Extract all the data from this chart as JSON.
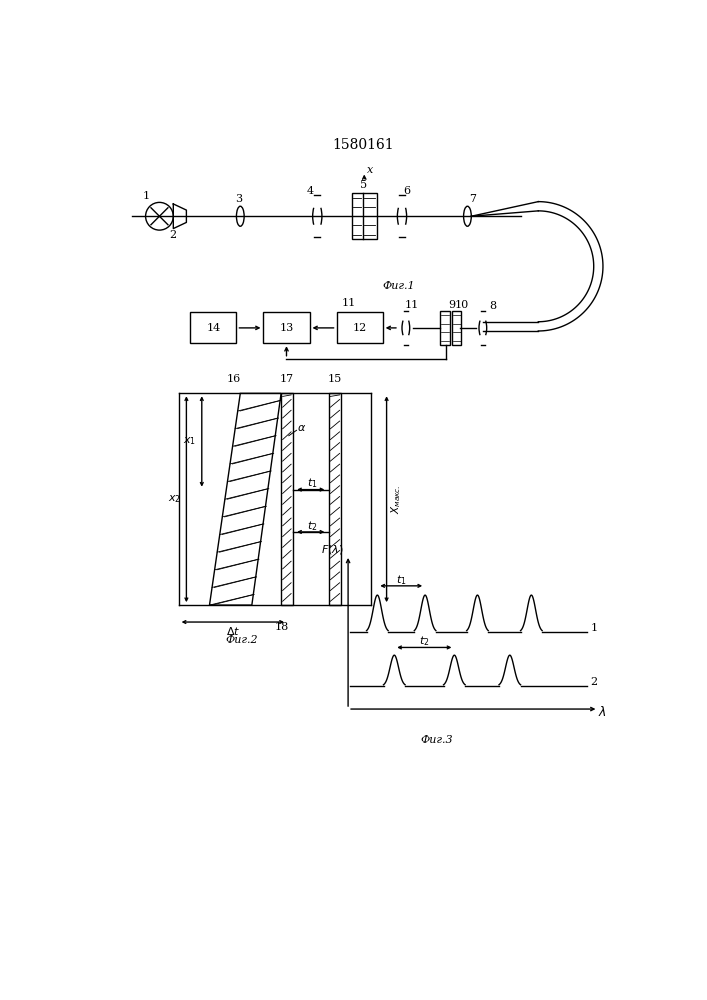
{
  "title": "1580161",
  "fig1_label": "Фиг.1",
  "fig2_label": "Фиг.2",
  "fig3_label": "Фиг.3",
  "bg_color": "#ffffff",
  "line_color": "#000000"
}
